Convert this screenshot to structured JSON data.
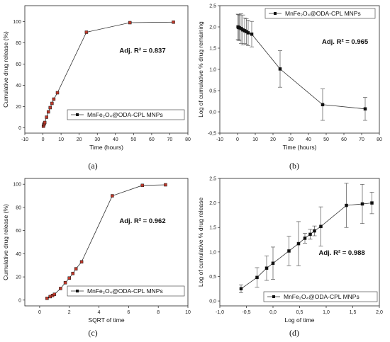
{
  "chart_data": [
    {
      "panel_label": "(a)",
      "type": "line",
      "xlabel": "Time (hours)",
      "ylabel": "Cumulative drug release (%)",
      "xlim": [
        -10,
        80
      ],
      "ylim": [
        -5,
        115
      ],
      "xticks": [
        -10,
        0,
        10,
        20,
        30,
        40,
        50,
        60,
        70,
        80
      ],
      "xtick_labels": [
        "-10",
        "0",
        "10",
        "20",
        "30",
        "40",
        "50",
        "60",
        "70",
        "80"
      ],
      "yticks": [
        0,
        20,
        40,
        60,
        80,
        100
      ],
      "ytick_labels": [
        "0",
        "20",
        "40",
        "60",
        "80",
        "100"
      ],
      "annotation": "Adj. R² = 0.837",
      "legend_position": "bottom-right",
      "legend_label": "MnFe₂O₄@ODA-CPL MNPs",
      "series": [
        {
          "name": "MnFe₂O₄@ODA-CPL MNPs",
          "color": "#c0392b",
          "x": [
            0.25,
            0.5,
            0.75,
            1,
            2,
            3,
            4,
            5,
            6,
            8,
            24,
            48,
            72
          ],
          "y": [
            1.5,
            3,
            4,
            5,
            10,
            15,
            19,
            23,
            27,
            33,
            90,
            99,
            99.5
          ],
          "yerr": null
        }
      ]
    },
    {
      "panel_label": "(b)",
      "type": "line",
      "xlabel": "Time (hours)",
      "ylabel": "Log of cumulative % drug remaining",
      "xlim": [
        -10,
        80
      ],
      "ylim": [
        -0.5,
        2.5
      ],
      "xticks": [
        -10,
        0,
        10,
        20,
        30,
        40,
        50,
        60,
        70,
        80
      ],
      "xtick_labels": [
        "-10",
        "0",
        "10",
        "20",
        "30",
        "40",
        "50",
        "60",
        "70",
        "80"
      ],
      "yticks": [
        -0.5,
        0,
        0.5,
        1,
        1.5,
        2,
        2.5
      ],
      "ytick_labels": [
        "-0,5",
        "0,0",
        "0,5",
        "1,0",
        "1,5",
        "2,0",
        "2,5"
      ],
      "annotation": "Adj. R² = 0.965",
      "legend_position": "top-right",
      "legend_label": "MnFe₂O₄@ODA-CPL MNPs",
      "series": [
        {
          "name": "MnFe₂O₄@ODA-CPL MNPs",
          "color": "#111111",
          "x": [
            0.25,
            0.5,
            1,
            2,
            3,
            4,
            5,
            6,
            8,
            24,
            48,
            72
          ],
          "y": [
            2.0,
            1.99,
            1.98,
            1.96,
            1.93,
            1.91,
            1.89,
            1.86,
            1.83,
            1.01,
            0.17,
            0.07
          ],
          "yerr": [
            0.3,
            0.3,
            0.3,
            0.35,
            0.35,
            0.3,
            0.3,
            0.3,
            0.3,
            0.43,
            0.37,
            0.27
          ]
        }
      ]
    },
    {
      "panel_label": "(c)",
      "type": "line",
      "xlabel": "SQRT of time",
      "ylabel": "Cumulative drug release (%)",
      "xlim": [
        -1,
        10
      ],
      "ylim": [
        -5,
        105
      ],
      "xticks": [
        0,
        2,
        4,
        6,
        8,
        10
      ],
      "xtick_labels": [
        "0",
        "2",
        "4",
        "6",
        "8",
        "10"
      ],
      "yticks": [
        0,
        20,
        40,
        60,
        80,
        100
      ],
      "ytick_labels": [
        "0",
        "20",
        "40",
        "60",
        "80",
        "100"
      ],
      "annotation": "Adj. R² = 0.962",
      "legend_position": "bottom-right",
      "legend_label": "MnFe₂O₄@ODA-CPL MNPs",
      "series": [
        {
          "name": "MnFe₂O₄@ODA-CPL MNPs",
          "color": "#c0392b",
          "x": [
            0.5,
            0.71,
            0.87,
            1,
            1.41,
            1.73,
            2,
            2.24,
            2.45,
            2.83,
            4.9,
            6.93,
            8.49
          ],
          "y": [
            1.5,
            3,
            4,
            5,
            10,
            15,
            19,
            23,
            27,
            33,
            90,
            99,
            99.5
          ],
          "yerr": null
        }
      ]
    },
    {
      "panel_label": "(d)",
      "type": "line",
      "xlabel": "Log of time",
      "ylabel": "Log of cumulative % drug release",
      "xlim": [
        -1,
        2
      ],
      "ylim": [
        -0.1,
        2.5
      ],
      "xticks": [
        -1,
        -0.5,
        0,
        0.5,
        1,
        1.5,
        2
      ],
      "xtick_labels": [
        "-1,0",
        "-0,5",
        "0,0",
        "0,5",
        "1,0",
        "1,5",
        "2,0"
      ],
      "yticks": [
        0,
        0.5,
        1,
        1.5,
        2,
        2.5
      ],
      "ytick_labels": [
        "0,0",
        "0,5",
        "1,0",
        "1,5",
        "2,0",
        "2,5"
      ],
      "annotation": "Adj. R² = 0.988",
      "legend_position": "bottom-right",
      "legend_label": "MnFe₂O₄@ODA-CPL MNPs",
      "series": [
        {
          "name": "MnFe₂O₄@ODA-CPL MNPs",
          "color": "#111111",
          "x": [
            -0.6,
            -0.3,
            -0.12,
            0,
            0.3,
            0.48,
            0.6,
            0.7,
            0.78,
            0.9,
            1.38,
            1.68,
            1.86
          ],
          "y": [
            0.25,
            0.48,
            0.67,
            0.77,
            1.02,
            1.17,
            1.28,
            1.36,
            1.43,
            1.52,
            1.95,
            1.98,
            2.0
          ],
          "yerr": [
            0.08,
            0.2,
            0.25,
            0.33,
            0.3,
            0.45,
            0.1,
            0.1,
            0.1,
            0.4,
            0.45,
            0.4,
            0.22
          ]
        }
      ]
    }
  ]
}
